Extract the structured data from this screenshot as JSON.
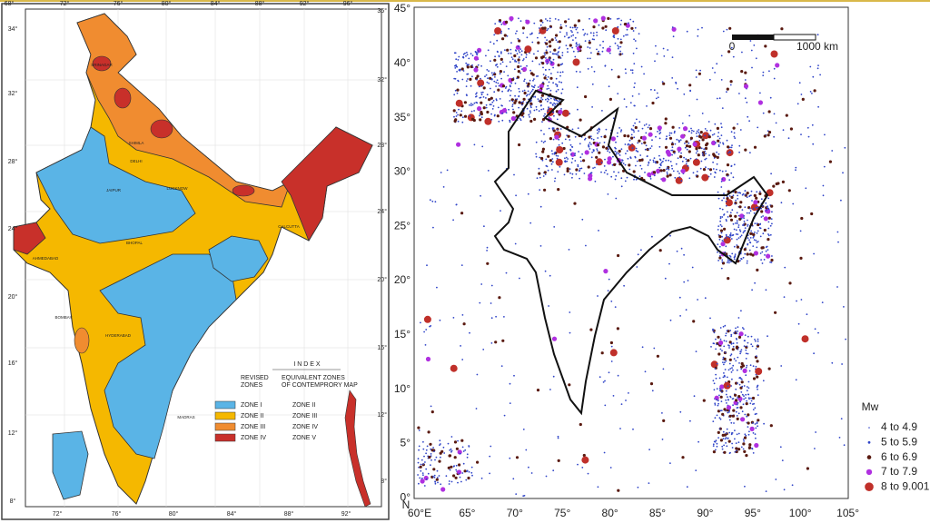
{
  "left_map": {
    "lon_top": [
      "68°",
      "72°",
      "76°",
      "80°",
      "84°",
      "88°",
      "92°",
      "96°"
    ],
    "lat_left": [
      "34°",
      "32°",
      "28°",
      "24°",
      "20°",
      "16°",
      "12°",
      "8°"
    ],
    "lat_right": [
      "36°",
      "32°",
      "28°",
      "24°",
      "20°",
      "16°",
      "12°",
      "8°"
    ],
    "lon_bottom": [
      "72°",
      "76°",
      "80°",
      "84°",
      "88°",
      "92°"
    ],
    "cities": [
      "SRINAGAR",
      "SHIMLA",
      "DELHI",
      "JAIPUR",
      "LUCKNOW",
      "AHMEDABAD",
      "BHOPAL",
      "CALCUTTA",
      "BOMBAY",
      "HYDERABAD",
      "MADRAS"
    ],
    "index": {
      "title": "I N D E X",
      "col1": [
        "REVISED",
        "ZONES"
      ],
      "col2": [
        "EQUIVALENT ZONES",
        "OF CONTEMPRORY MAP"
      ],
      "rows": [
        [
          "ZONE I",
          "ZONE II"
        ],
        [
          "ZONE II",
          "ZONE III"
        ],
        [
          "ZONE III",
          "ZONE IV"
        ],
        [
          "ZONE IV",
          "ZONE V"
        ]
      ]
    }
  },
  "right_map": {
    "lat_labels": [
      "45°",
      "40°",
      "35°",
      "30°",
      "25°",
      "20°",
      "15°",
      "10°",
      "5°",
      "0°"
    ],
    "lon_labels": [
      "60°E",
      "65°",
      "70°",
      "75°",
      "80°",
      "85°",
      "90°",
      "95°",
      "100°",
      "105°"
    ],
    "north": "N",
    "scale": {
      "start": "0",
      "end": "1000 km"
    },
    "legend": {
      "title": "Mw",
      "items": [
        "4 to 4.9",
        "5 to 5.9",
        "6 to 6.9",
        "7 to 7.9",
        "8 to 9.001"
      ]
    }
  }
}
